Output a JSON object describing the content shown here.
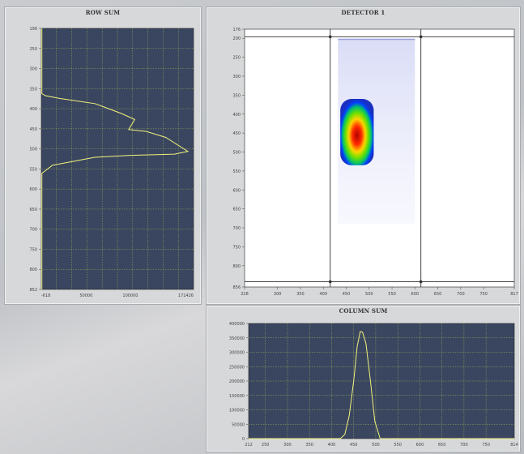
{
  "colors": {
    "plot_bg": "#3a4660",
    "grid": "#9fae55",
    "trace": "#f2f27a",
    "cursor": "#444444"
  },
  "row_sum": {
    "title": "ROW SUM",
    "y_ticks": [
      "196",
      "250",
      "300",
      "350",
      "400",
      "450",
      "500",
      "550",
      "600",
      "650",
      "700",
      "750",
      "800",
      "852"
    ],
    "x_ticks": [
      "-618",
      "50000",
      "100000",
      "171426"
    ]
  },
  "detector": {
    "title": "DETECTOR 1",
    "y_ticks": [
      "176",
      "200",
      "250",
      "300",
      "350",
      "400",
      "450",
      "500",
      "550",
      "600",
      "650",
      "700",
      "750",
      "800",
      "856"
    ],
    "x_ticks": [
      "228",
      "300",
      "350",
      "400",
      "450",
      "500",
      "550",
      "600",
      "650",
      "700",
      "750",
      "817"
    ]
  },
  "column_sum": {
    "title": "COLUMN SUM",
    "y_ticks": [
      "400000",
      "350000",
      "300000",
      "250000",
      "200000",
      "150000",
      "100000",
      "50000",
      "0"
    ],
    "x_ticks": [
      "212",
      "250",
      "300",
      "350",
      "400",
      "450",
      "500",
      "550",
      "600",
      "650",
      "700",
      "750",
      "814"
    ]
  },
  "chart_data": [
    {
      "type": "line",
      "title": "ROW SUM",
      "orientation": "vertical-profile",
      "xlim": [
        -618,
        171426
      ],
      "ylim": [
        196,
        852
      ],
      "x": [
        0,
        0,
        4000,
        20000,
        60000,
        90000,
        105000,
        98000,
        118000,
        140000,
        165000,
        150000,
        100000,
        60000,
        12000,
        0,
        0
      ],
      "y": [
        196,
        360,
        365,
        372,
        385,
        410,
        425,
        450,
        455,
        470,
        505,
        512,
        515,
        520,
        540,
        560,
        852
      ]
    },
    {
      "type": "line",
      "title": "COLUMN SUM",
      "xlim": [
        212,
        814
      ],
      "ylim": [
        0,
        400000
      ],
      "x": [
        212,
        420,
        430,
        440,
        450,
        458,
        465,
        470,
        478,
        488,
        498,
        510,
        814
      ],
      "y": [
        0,
        0,
        15000,
        80000,
        200000,
        320000,
        372000,
        370000,
        330000,
        200000,
        60000,
        0,
        0
      ]
    }
  ]
}
